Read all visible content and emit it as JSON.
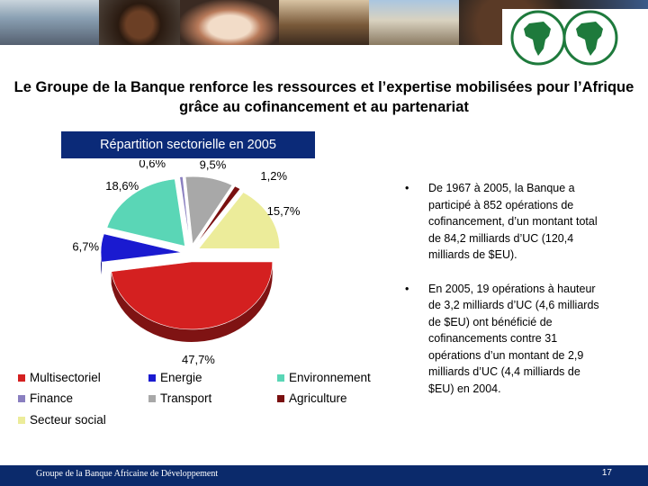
{
  "slide": {
    "title": "Le Groupe de la Banque renforce les ressources et l’expertise mobilisées pour l’Afrique grâce au cofinancement et au partenariat"
  },
  "chart_data": {
    "type": "pie",
    "title": "Répartition sectorielle en 2005",
    "categories": [
      "Multisectoriel",
      "Energie",
      "Environnement",
      "Finance",
      "Transport",
      "Agriculture",
      "Secteur social"
    ],
    "values": [
      47.7,
      6.7,
      18.6,
      0.6,
      9.5,
      1.2,
      15.7
    ],
    "data_labels": [
      "47,7%",
      "6,7%",
      "18,6%",
      "0,6%",
      "9,5%",
      "1,2%",
      "15,7%"
    ],
    "colors": [
      "#d42020",
      "#1a1ad0",
      "#5ad6b6",
      "#8a7fc0",
      "#a8a8a8",
      "#7a1010",
      "#ecec9a"
    ],
    "legend_position": "bottom",
    "style": "3d exploded"
  },
  "bullets": [
    {
      "marker": "•",
      "text": "De 1967 à 2005, la Banque a participé à 852 opérations de cofinancement, d’un montant total de 84,2 milliards d’UC (120,4 milliards de $EU)."
    },
    {
      "marker": "•",
      "text": "En 2005, 19 opérations à hauteur de 3,2 milliards d’UC (4,6 milliards de $EU) ont bénéficié de cofinancements contre 31 opérations d’un montant de 2,9 milliards d’UC (4,4 milliards de $EU) en 2004."
    }
  ],
  "footer": {
    "text": "Groupe de la Banque Africaine de Développement",
    "page_number": "17"
  },
  "colors": {
    "footer_bg": "#0b2a6b",
    "chart_title_bg": "#0b2a78",
    "logo_green": "#1e7a3c"
  }
}
